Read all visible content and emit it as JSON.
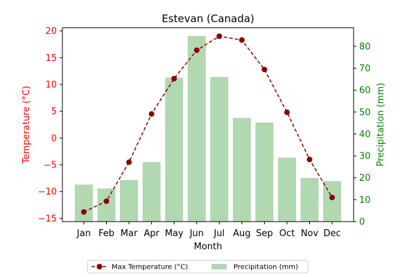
{
  "chart_data": {
    "type": "bar+line",
    "title": "Estevan (Canada)",
    "xlabel": "Month",
    "y_left_label": "Temperature (°C)",
    "y_right_label": "Precipitation (mm)",
    "categories": [
      "Jan",
      "Feb",
      "Mar",
      "Apr",
      "May",
      "Jun",
      "Jul",
      "Aug",
      "Sep",
      "Oct",
      "Nov",
      "Dec"
    ],
    "y_left_lim": [
      -15.6,
      20.6
    ],
    "y_right_lim": [
      0,
      88.5
    ],
    "y_left_ticks": [
      -15,
      -10,
      -5,
      0,
      5,
      10,
      15,
      20
    ],
    "y_left_tick_labels": [
      "−15",
      "−10",
      "−5",
      "0",
      "5",
      "10",
      "15",
      "20"
    ],
    "y_right_ticks": [
      0,
      10,
      20,
      30,
      40,
      50,
      60,
      70,
      80
    ],
    "y_right_tick_labels": [
      "0",
      "10",
      "20",
      "30",
      "40",
      "50",
      "60",
      "70",
      "80"
    ],
    "grid": false,
    "legend_placement": "bottom-center",
    "series": [
      {
        "name": "Max Temperature (°C)",
        "kind": "line",
        "axis": "left",
        "color": "#8b0000",
        "line_style": "dashed",
        "marker": "circle",
        "values": [
          -13.8,
          -11.8,
          -4.5,
          4.5,
          11.1,
          16.4,
          19.0,
          18.3,
          12.8,
          4.8,
          -4.0,
          -11.1
        ]
      },
      {
        "name": "Precipitation (mm)",
        "kind": "bar",
        "axis": "right",
        "color": "#b2d8b2",
        "values": [
          16.9,
          15.1,
          19.0,
          27.2,
          65.7,
          84.7,
          66.0,
          47.3,
          45.2,
          29.2,
          19.9,
          18.5
        ]
      }
    ],
    "colors": {
      "left_axis": "#ff0000",
      "right_axis": "#008000",
      "axes": "#000000"
    }
  }
}
